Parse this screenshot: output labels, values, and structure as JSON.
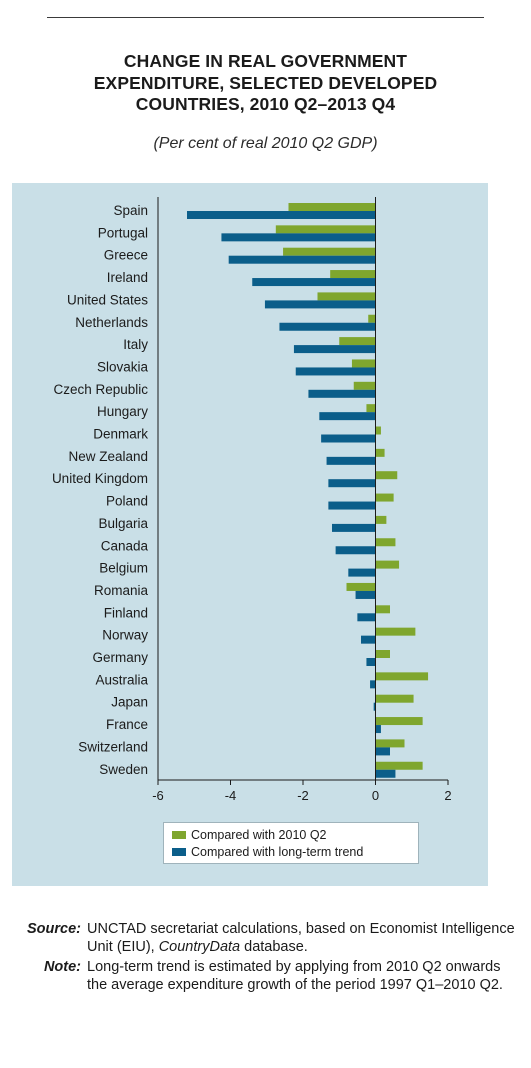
{
  "header": {
    "title": "CHANGE IN REAL GOVERNMENT\nEXPENDITURE, SELECTED DEVELOPED\nCOUNTRIES, 2010 Q2–2013 Q4",
    "subtitle": "(Per cent of real 2010 Q2 GDP)"
  },
  "legend": {
    "items": [
      {
        "label": "Compared with 2010 Q2",
        "color": "#7fa62e"
      },
      {
        "label": "Compared with long-term trend",
        "color": "#0b5e8a"
      }
    ]
  },
  "chart_data": {
    "type": "bar",
    "orientation": "horizontal",
    "categories": [
      "Spain",
      "Portugal",
      "Greece",
      "Ireland",
      "United States",
      "Netherlands",
      "Italy",
      "Slovakia",
      "Czech Republic",
      "Hungary",
      "Denmark",
      "New Zealand",
      "United Kingdom",
      "Poland",
      "Bulgaria",
      "Canada",
      "Belgium",
      "Romania",
      "Finland",
      "Norway",
      "Germany",
      "Australia",
      "Japan",
      "France",
      "Switzerland",
      "Sweden"
    ],
    "series": [
      {
        "name": "Compared with 2010 Q2",
        "color": "#7fa62e",
        "values": [
          -2.4,
          -2.75,
          -2.55,
          -1.25,
          -1.6,
          -0.2,
          -1.0,
          -0.65,
          -0.6,
          -0.25,
          0.15,
          0.25,
          0.6,
          0.5,
          0.3,
          0.55,
          0.65,
          -0.8,
          0.4,
          1.1,
          0.4,
          1.45,
          1.05,
          1.3,
          0.8,
          1.3
        ]
      },
      {
        "name": "Compared with long-term trend",
        "color": "#0b5e8a",
        "values": [
          -5.2,
          -4.25,
          -4.05,
          -3.4,
          -3.05,
          -2.65,
          -2.25,
          -2.2,
          -1.85,
          -1.55,
          -1.5,
          -1.35,
          -1.3,
          -1.3,
          -1.2,
          -1.1,
          -0.75,
          -0.55,
          -0.5,
          -0.4,
          -0.25,
          -0.15,
          -0.05,
          0.15,
          0.4,
          0.55
        ]
      }
    ],
    "xlim": [
      -6,
      2
    ],
    "xticks": [
      -6,
      -4,
      -2,
      0,
      2
    ],
    "xtick_labels": [
      "-6",
      "-4",
      "-2",
      "0",
      "2"
    ],
    "grid": false,
    "legend_position": "bottom"
  },
  "footer": {
    "source_label": "Source:",
    "source_text_1": "UNCTAD secretariat calculations, based on Economist Intelligence Unit (EIU), ",
    "source_text_em": "CountryData",
    "source_text_2": " database.",
    "note_label": "Note:",
    "note_text": "Long-term trend is estimated by applying from 2010 Q2 onwards the average expenditure growth of the period 1997 Q1–2010 Q2."
  }
}
